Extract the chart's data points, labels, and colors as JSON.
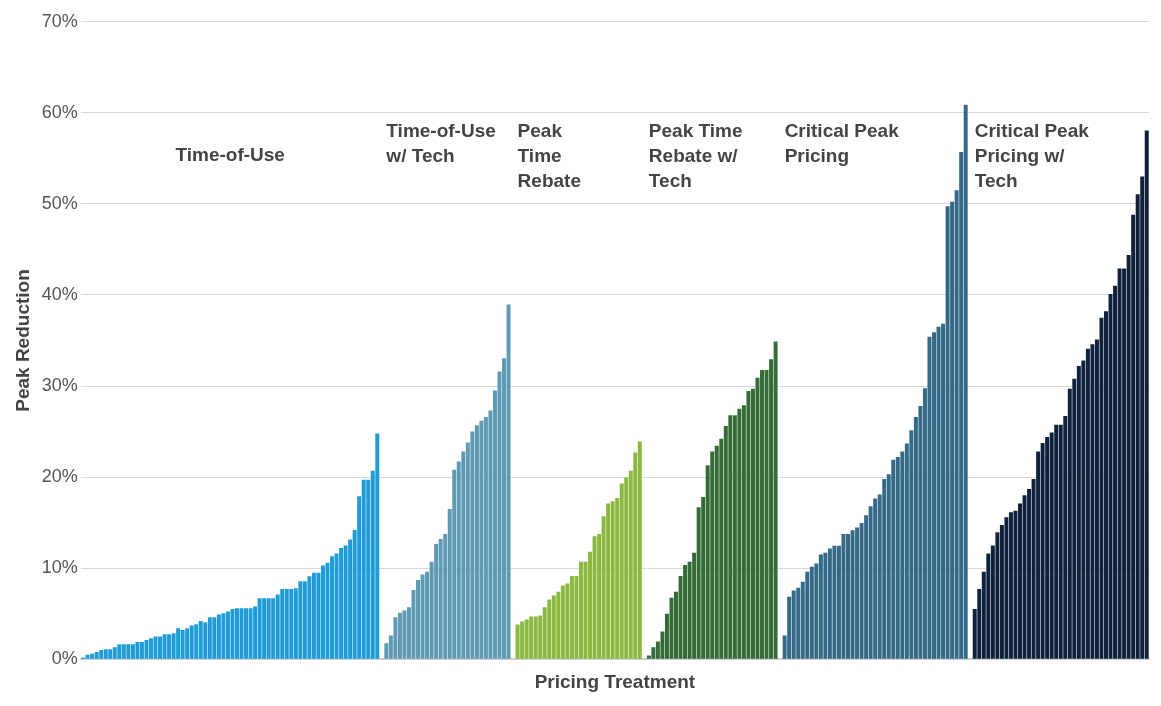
{
  "chart_data": {
    "type": "bar",
    "xlabel": "Pricing Treatment",
    "ylabel": "Peak Reduction",
    "ylim": [
      0,
      70
    ],
    "yticks": [
      {
        "value": 0,
        "label": "0%"
      },
      {
        "value": 10,
        "label": "10%"
      },
      {
        "value": 20,
        "label": "20%"
      },
      {
        "value": 30,
        "label": "30%"
      },
      {
        "value": 40,
        "label": "40%"
      },
      {
        "value": 50,
        "label": "50%"
      },
      {
        "value": 60,
        "label": "60%"
      },
      {
        "value": 70,
        "label": "70%"
      }
    ],
    "grid": "y",
    "annotations": [
      "Time-of-Use",
      "Time-of-Use w/ Tech",
      "Peak Time Rebate",
      "Peak Time Rebate w/ Tech",
      "Critical Peak Pricing",
      "Critical Peak Pricing w/ Tech"
    ],
    "categories": [
      null,
      null,
      null,
      null,
      null,
      null,
      null,
      null,
      null,
      null,
      null,
      null,
      null,
      null,
      null,
      null,
      null,
      null,
      null,
      null,
      null,
      null,
      null,
      null,
      null,
      null,
      null,
      null,
      null,
      null,
      null,
      null,
      null,
      null,
      null,
      null,
      null,
      null,
      null,
      null,
      null,
      null,
      null,
      null,
      null,
      null,
      null,
      null,
      null,
      null,
      null,
      null,
      null,
      null,
      null,
      null,
      null,
      null,
      null,
      null,
      null,
      null,
      null,
      null,
      null,
      null,
      null,
      null,
      null,
      null,
      null,
      null,
      null,
      null,
      null,
      null,
      null,
      null,
      null,
      null,
      null,
      null,
      null,
      null,
      null,
      null,
      null,
      null,
      null,
      null,
      null,
      null,
      null,
      null,
      null,
      null,
      null,
      null,
      null,
      null,
      null,
      null,
      null,
      null,
      null,
      null,
      null,
      null,
      null,
      null,
      null,
      null,
      null,
      null,
      null,
      null,
      null,
      null,
      null,
      null,
      null,
      null,
      null,
      null,
      null,
      null,
      null,
      null,
      null,
      null,
      null,
      null,
      null,
      null,
      null,
      null,
      null,
      null,
      null,
      null,
      null,
      null,
      null,
      null,
      null,
      null,
      null,
      null,
      null,
      null,
      null,
      null,
      null,
      null,
      null,
      null,
      null,
      null,
      null,
      null,
      null,
      null,
      null,
      null,
      null,
      null,
      null,
      null,
      null,
      null,
      null,
      null,
      null,
      null,
      null,
      null,
      null,
      null,
      null,
      null,
      null,
      null,
      null,
      null,
      null,
      null,
      null,
      null,
      null,
      null,
      null,
      null,
      null,
      null,
      null,
      null,
      null,
      null,
      null,
      null,
      null,
      null,
      null,
      null,
      null,
      null,
      null,
      null,
      null,
      null,
      null,
      null,
      null,
      null,
      null,
      null,
      null,
      null,
      null,
      null,
      null,
      null,
      null,
      null,
      null,
      null,
      null,
      null,
      null,
      null,
      null,
      null,
      null,
      null,
      null,
      null
    ],
    "values": [
      0.2,
      0.5,
      0.6,
      0.8,
      1.0,
      1.1,
      1.1,
      1.3,
      1.65,
      1.65,
      1.65,
      1.65,
      1.9,
      1.9,
      2.1,
      2.3,
      2.5,
      2.5,
      2.75,
      2.75,
      2.85,
      3.4,
      3.2,
      3.4,
      3.7,
      3.85,
      4.2,
      4.05,
      4.6,
      4.6,
      4.9,
      5.05,
      5.25,
      5.5,
      5.6,
      5.6,
      5.6,
      5.6,
      5.8,
      6.7,
      6.7,
      6.7,
      6.7,
      7.1,
      7.7,
      7.7,
      7.7,
      7.8,
      8.55,
      8.55,
      9.1,
      9.5,
      9.5,
      10.3,
      10.6,
      11.3,
      11.6,
      12.2,
      12.5,
      13.15,
      14.2,
      17.9,
      19.7,
      19.7,
      20.7,
      24.8,
      null,
      1.75,
      2.6,
      4.6,
      5.1,
      5.35,
      5.7,
      7.6,
      8.7,
      9.3,
      9.6,
      10.7,
      12.65,
      13.2,
      13.75,
      16.5,
      20.8,
      21.7,
      22.8,
      23.8,
      25.0,
      25.7,
      26.2,
      26.6,
      27.3,
      29.5,
      31.6,
      33.05,
      38.95,
      null,
      3.8,
      4.15,
      4.35,
      4.7,
      4.7,
      4.8,
      5.7,
      6.55,
      7.0,
      7.4,
      8.1,
      8.3,
      9.15,
      9.15,
      10.7,
      10.7,
      11.8,
      13.5,
      13.75,
      15.7,
      17.1,
      17.35,
      17.7,
      19.3,
      19.95,
      20.7,
      22.7,
      23.9,
      null,
      0.4,
      1.3,
      1.95,
      3.05,
      5.0,
      6.75,
      7.4,
      9.15,
      10.35,
      10.7,
      11.7,
      16.7,
      17.8,
      21.3,
      22.8,
      23.45,
      24.2,
      25.6,
      26.8,
      26.8,
      27.5,
      27.9,
      29.45,
      29.7,
      30.9,
      31.75,
      31.75,
      32.95,
      34.9,
      null,
      2.6,
      6.85,
      7.55,
      7.85,
      8.5,
      9.6,
      10.15,
      10.5,
      11.5,
      11.7,
      12.15,
      12.45,
      12.45,
      13.75,
      13.75,
      14.15,
      14.45,
      14.95,
      15.8,
      16.8,
      17.65,
      18.1,
      19.8,
      20.3,
      21.9,
      22.2,
      22.8,
      23.7,
      25.15,
      26.6,
      27.8,
      29.75,
      35.4,
      35.9,
      36.5,
      36.85,
      49.75,
      50.25,
      51.5,
      55.7,
      60.9,
      null,
      5.5,
      7.7,
      9.6,
      11.6,
      12.5,
      13.95,
      14.75,
      15.6,
      16.15,
      16.3,
      17.1,
      18.0,
      18.7,
      19.8,
      22.8,
      23.75,
      24.4,
      24.9,
      25.75,
      25.75,
      26.7,
      29.7,
      30.8,
      32.2,
      32.8,
      34.1,
      34.6,
      35.1,
      37.5,
      38.2,
      40.1,
      41.0,
      42.9,
      42.9,
      44.4,
      48.8,
      51.05,
      53.0,
      58.05
    ],
    "colors": [
      "#1e9cd7",
      "#1e9cd7",
      "#1e9cd7",
      "#1e9cd7",
      "#1e9cd7",
      "#1e9cd7",
      "#1e9cd7",
      "#1e9cd7",
      "#1e9cd7",
      "#1e9cd7",
      "#1e9cd7",
      "#1e9cd7",
      "#1e9cd7",
      "#1e9cd7",
      "#1e9cd7",
      "#1e9cd7",
      "#1e9cd7",
      "#1e9cd7",
      "#1e9cd7",
      "#1e9cd7",
      "#1e9cd7",
      "#1e9cd7",
      "#1e9cd7",
      "#1e9cd7",
      "#1e9cd7",
      "#1e9cd7",
      "#1e9cd7",
      "#1e9cd7",
      "#1e9cd7",
      "#1e9cd7",
      "#1e9cd7",
      "#1e9cd7",
      "#1e9cd7",
      "#1e9cd7",
      "#1e9cd7",
      "#1e9cd7",
      "#1e9cd7",
      "#1e9cd7",
      "#1e9cd7",
      "#1e9cd7",
      "#1e9cd7",
      "#1e9cd7",
      "#1e9cd7",
      "#1e9cd7",
      "#1e9cd7",
      "#1e9cd7",
      "#1e9cd7",
      "#1e9cd7",
      "#1e9cd7",
      "#1e9cd7",
      "#1e9cd7",
      "#1e9cd7",
      "#1e9cd7",
      "#1e9cd7",
      "#1e9cd7",
      "#1e9cd7",
      "#1e9cd7",
      "#1e9cd7",
      "#1e9cd7",
      "#1e9cd7",
      "#1e9cd7",
      "#1e9cd7",
      "#1e9cd7",
      "#1e9cd7",
      "#1e9cd7",
      "#1e9cd7",
      null,
      "#5f9ab4",
      "#5f9ab4",
      "#5f9ab4",
      "#5f9ab4",
      "#5f9ab4",
      "#5f9ab4",
      "#5f9ab4",
      "#5f9ab4",
      "#5f9ab4",
      "#5f9ab4",
      "#5f9ab4",
      "#5f9ab4",
      "#5f9ab4",
      "#5f9ab4",
      "#5f9ab4",
      "#5f9ab4",
      "#5f9ab4",
      "#5f9ab4",
      "#5f9ab4",
      "#5f9ab4",
      "#5f9ab4",
      "#5f9ab4",
      "#5f9ab4",
      "#5f9ab4",
      "#5f9ab4",
      "#5f9ab4",
      "#5f9ab4",
      "#5f9ab4",
      null,
      "#8bb940",
      "#8bb940",
      "#8bb940",
      "#8bb940",
      "#8bb940",
      "#8bb940",
      "#8bb940",
      "#8bb940",
      "#8bb940",
      "#8bb940",
      "#8bb940",
      "#8bb940",
      "#8bb940",
      "#8bb940",
      "#8bb940",
      "#8bb940",
      "#8bb940",
      "#8bb940",
      "#8bb940",
      "#8bb940",
      "#8bb940",
      "#8bb940",
      "#8bb940",
      "#8bb940",
      "#8bb940",
      "#8bb940",
      "#8bb940",
      "#8bb940",
      null,
      "#356b37",
      "#356b37",
      "#356b37",
      "#356b37",
      "#356b37",
      "#356b37",
      "#356b37",
      "#356b37",
      "#356b37",
      "#356b37",
      "#356b37",
      "#356b37",
      "#356b37",
      "#356b37",
      "#356b37",
      "#356b37",
      "#356b37",
      "#356b37",
      "#356b37",
      "#356b37",
      "#356b37",
      "#356b37",
      "#356b37",
      "#356b37",
      "#356b37",
      "#356b37",
      "#356b37",
      "#356b37",
      "#356b37",
      null,
      "#346a87",
      "#346a87",
      "#346a87",
      "#346a87",
      "#346a87",
      "#346a87",
      "#346a87",
      "#346a87",
      "#346a87",
      "#346a87",
      "#346a87",
      "#346a87",
      "#346a87",
      "#346a87",
      "#346a87",
      "#346a87",
      "#346a87",
      "#346a87",
      "#346a87",
      "#346a87",
      "#346a87",
      "#346a87",
      "#346a87",
      "#346a87",
      "#346a87",
      "#346a87",
      "#346a87",
      "#346a87",
      "#346a87",
      "#346a87",
      "#346a87",
      "#346a87",
      "#346a87",
      "#346a87",
      "#346a87",
      "#346a87",
      "#346a87",
      "#346a87",
      "#346a87",
      "#346a87",
      "#346a87",
      null,
      "#0f223b",
      "#0f223b",
      "#0f223b",
      "#0f223b",
      "#0f223b",
      "#0f223b",
      "#0f223b",
      "#0f223b",
      "#0f223b",
      "#0f223b",
      "#0f223b",
      "#0f223b",
      "#0f223b",
      "#0f223b",
      "#0f223b",
      "#0f223b",
      "#0f223b",
      "#0f223b",
      "#0f223b",
      "#0f223b",
      "#0f223b",
      "#0f223b",
      "#0f223b",
      "#0f223b",
      "#0f223b",
      "#0f223b",
      "#0f223b",
      "#0f223b",
      "#0f223b",
      "#0f223b",
      "#0f223b",
      "#0f223b",
      "#0f223b",
      "#0f223b",
      "#0f223b",
      "#0f223b",
      "#0f223b",
      "#0f223b",
      "#0f223b"
    ]
  }
}
